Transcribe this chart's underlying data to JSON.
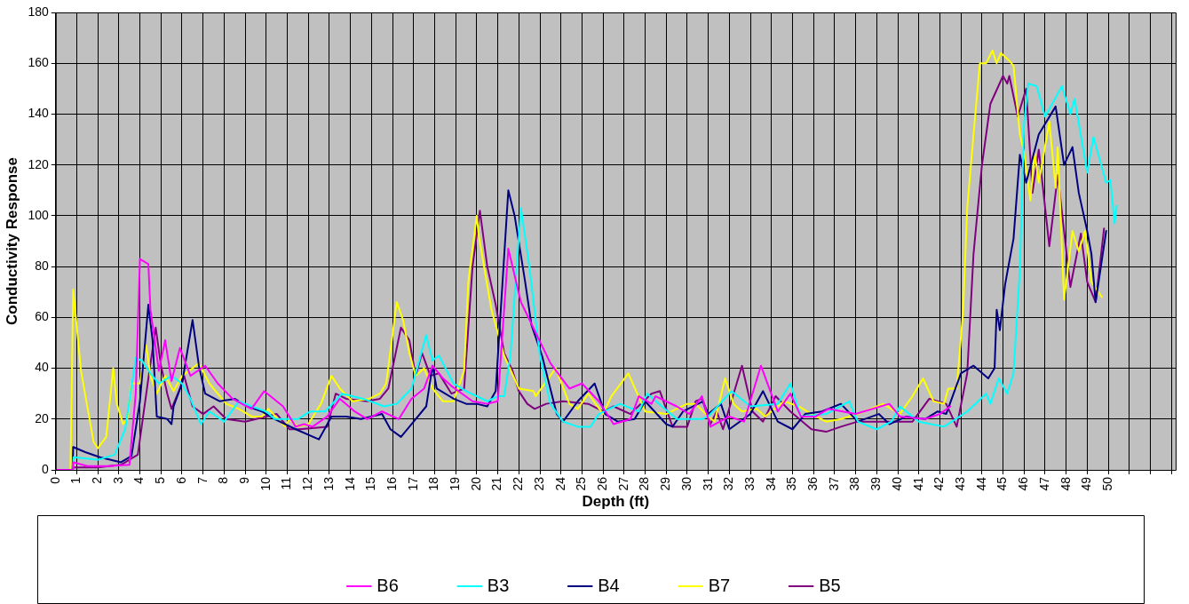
{
  "chart_data": {
    "type": "line",
    "xlabel": "Depth (ft)",
    "ylabel": "Conductivity Response",
    "xlim": [
      0,
      53.2
    ],
    "ylim": [
      0,
      180
    ],
    "xticks": [
      0,
      1,
      2,
      3,
      4,
      5,
      6,
      7,
      8,
      9,
      10,
      11,
      12,
      13,
      14,
      15,
      16,
      17,
      18,
      19,
      20,
      21,
      22,
      23,
      24,
      25,
      26,
      27,
      28,
      29,
      30,
      31,
      32,
      33,
      34,
      35,
      36,
      37,
      38,
      39,
      40,
      41,
      42,
      43,
      44,
      45,
      46,
      47,
      48,
      49,
      50,
      {
        "value": 51,
        "label": null
      },
      {
        "value": 52,
        "label": null
      },
      {
        "value": 53,
        "label": null
      }
    ],
    "yticks": [
      0,
      20,
      40,
      60,
      80,
      100,
      120,
      140,
      160,
      180
    ],
    "grid": true,
    "legend": "bottom",
    "marker": "none",
    "line_style": "solid",
    "series": [
      {
        "name": "B6",
        "color": "#ff00ff",
        "x": [
          0,
          0.8,
          0.85,
          1.5,
          2.5,
          3.5,
          3.8,
          4.0,
          4.4,
          4.5,
          4.9,
          5.2,
          5.5,
          5.9,
          6.4,
          7.1,
          7.7,
          8.4,
          9.3,
          9.9,
          10.8,
          11.4,
          11.8,
          12.2,
          12.9,
          13.5,
          14.2,
          14.8,
          15.5,
          16.3,
          16.9,
          17.5,
          17.9,
          18.4,
          18.8,
          19.8,
          20.5,
          21.0,
          21.5,
          22.1,
          22.8,
          23.5,
          24.4,
          25.0,
          25.8,
          26.5,
          27.3,
          27.7,
          28.3,
          28.5,
          29.5,
          30.1,
          30.7,
          31.1,
          32.0,
          32.7,
          33.5,
          34.3,
          34.9,
          35.4,
          36.1,
          36.7,
          38.0,
          39.6,
          40.1,
          41.3,
          42.0,
          42.5
        ],
        "values": [
          0,
          0,
          3,
          1.5,
          1.5,
          2,
          30,
          83,
          81,
          63,
          39,
          51,
          35,
          48,
          37,
          41,
          34,
          28,
          24,
          31,
          25,
          17,
          18,
          17,
          21,
          28,
          23,
          20,
          23,
          20,
          28,
          32,
          41,
          36,
          33,
          27,
          26,
          27,
          87,
          66,
          54,
          42,
          32,
          34,
          27,
          18,
          20,
          29,
          26,
          29,
          25,
          22,
          29,
          17,
          21,
          19,
          41,
          23,
          30,
          21,
          21,
          24,
          22,
          26,
          21,
          20,
          22,
          25
        ]
      },
      {
        "name": "B3",
        "color": "#00ffff",
        "x": [
          0,
          0.8,
          0.85,
          2.0,
          2.8,
          3.3,
          3.8,
          4.1,
          4.5,
          4.9,
          5.5,
          6.0,
          6.4,
          6.9,
          7.3,
          8.0,
          8.7,
          9.3,
          10.0,
          10.4,
          11.5,
          12.1,
          12.8,
          13.6,
          14.6,
          15.6,
          16.2,
          16.9,
          17.6,
          17.9,
          18.2,
          18.9,
          19.5,
          20.5,
          21.0,
          21.3,
          21.6,
          22.1,
          22.5,
          23.0,
          23.5,
          24.1,
          24.8,
          25.4,
          25.8,
          26.8,
          27.7,
          28.1,
          29.5,
          30.7,
          31.0,
          32.1,
          33.0,
          34.3,
          34.9,
          35.4,
          36.6,
          37.7,
          38.1,
          39.0,
          39.7,
          40.1,
          41.0,
          42.2,
          43.3,
          44.2,
          44.4,
          44.8,
          45.2,
          45.5,
          45.8,
          46.0,
          46.2,
          46.6,
          47.0,
          47.8,
          48.2,
          48.4,
          49.0,
          49.3,
          49.9,
          50.1,
          50.3,
          50.4
        ],
        "values": [
          0,
          0,
          5,
          4,
          6,
          16,
          44,
          43,
          38,
          34,
          37,
          34,
          28,
          18,
          23,
          19,
          27,
          25,
          23,
          20,
          20,
          23,
          23,
          30,
          28,
          25,
          26,
          32,
          53,
          43,
          45,
          34,
          31,
          27,
          29,
          29,
          45,
          103,
          80,
          45,
          26,
          19,
          17,
          17,
          22,
          26,
          23,
          30,
          20,
          20,
          21,
          31,
          25,
          26,
          34,
          21,
          22,
          27,
          19,
          16,
          19,
          25,
          19,
          17,
          23,
          30,
          26,
          36,
          30,
          38,
          79,
          136,
          152,
          151,
          139,
          151,
          140,
          146,
          117,
          131,
          113,
          114,
          97,
          104
        ]
      },
      {
        "name": "B4",
        "color": "#000080",
        "x": [
          0,
          0.8,
          0.83,
          1.4,
          2.1,
          3.1,
          3.6,
          4.0,
          4.4,
          4.6,
          4.8,
          5.3,
          5.5,
          5.6,
          6.0,
          6.5,
          6.8,
          7.1,
          7.8,
          8.5,
          9.1,
          9.8,
          10.4,
          11.4,
          12.5,
          13.1,
          13.8,
          14.5,
          15.5,
          15.9,
          16.4,
          16.9,
          17.6,
          17.9,
          18.1,
          18.9,
          19.5,
          20.0,
          20.5,
          20.9,
          21.5,
          21.8,
          22.3,
          22.6,
          23.1,
          23.8,
          24.1,
          24.8,
          25.6,
          26.1,
          26.7,
          27.5,
          28.0,
          29.0,
          29.3,
          29.8,
          30.75,
          31.0,
          31.6,
          32.0,
          33.0,
          33.6,
          34.3,
          35.0,
          35.6,
          36.4,
          37.3,
          38.1,
          39.1,
          39.6,
          40.4,
          41.3,
          41.9,
          42.3,
          43.0,
          43.6,
          44.3,
          44.6,
          44.7,
          44.85,
          45.1,
          45.5,
          45.8,
          46.1,
          46.7,
          47.5,
          47.9,
          48.3,
          48.6,
          49.0,
          49.2,
          49.4,
          49.9
        ],
        "values": [
          0,
          0,
          9,
          7,
          5,
          3,
          5.5,
          27,
          65,
          51,
          21,
          20,
          18,
          25,
          34,
          59,
          41,
          30,
          27,
          28,
          25,
          23,
          20,
          16,
          12,
          21,
          21,
          20,
          22,
          16,
          13,
          18,
          25,
          41,
          32,
          28,
          26,
          26,
          25,
          31,
          110,
          100,
          74,
          57,
          45,
          22,
          19,
          27,
          34,
          22,
          19,
          20,
          27,
          18,
          17,
          23,
          27,
          22,
          26,
          16,
          22,
          31,
          19,
          16,
          22,
          23,
          26,
          19,
          22,
          18,
          21,
          20,
          23,
          22,
          38,
          41,
          36,
          40,
          63,
          55,
          73,
          91,
          124,
          113,
          132,
          143,
          120,
          127,
          109,
          94,
          85,
          66,
          94
        ]
      },
      {
        "name": "B7",
        "color": "#ffff00",
        "x": [
          0,
          0.7,
          0.83,
          1.2,
          1.8,
          2.0,
          2.4,
          2.73,
          2.9,
          3.2,
          3.4,
          3.6,
          4.0,
          4.3,
          4.5,
          4.8,
          5.2,
          5.6,
          6.0,
          6.5,
          6.8,
          7.3,
          8.1,
          8.7,
          9.3,
          9.8,
          10.1,
          10.9,
          11.1,
          11.5,
          12.0,
          12.6,
          13.1,
          13.5,
          14.1,
          14.9,
          15.4,
          15.7,
          16.2,
          16.5,
          16.8,
          17.1,
          17.5,
          17.9,
          18.4,
          18.9,
          19.4,
          19.6,
          20.0,
          20.1,
          20.7,
          21.3,
          22.0,
          22.7,
          22.8,
          23.75,
          24.4,
          24.8,
          25.3,
          26.0,
          26.4,
          27.2,
          28.0,
          29.0,
          30.0,
          30.4,
          31.0,
          31.3,
          31.8,
          32.2,
          32.6,
          33.3,
          33.7,
          34.6,
          35.3,
          35.9,
          36.6,
          37.3,
          38.1,
          39.3,
          40.1,
          40.7,
          41.2,
          41.7,
          42.2,
          42.4,
          42.8,
          43.1,
          43.3,
          43.6,
          43.9,
          44.2,
          44.5,
          44.7,
          44.9,
          45.3,
          45.5,
          45.8,
          46.0,
          46.3,
          46.5,
          46.7,
          47.2,
          47.5,
          47.6,
          47.9,
          48.3,
          48.6,
          48.9,
          49.2,
          49.7
        ],
        "values": [
          0,
          0,
          71,
          39,
          11,
          8.5,
          13,
          40,
          26,
          18,
          20,
          34,
          34,
          49,
          37,
          30,
          37,
          31,
          37,
          40,
          42,
          34,
          26,
          24,
          21,
          21,
          24,
          17,
          20,
          17,
          18,
          26,
          37,
          32,
          27,
          28,
          30,
          34,
          66,
          59,
          46,
          37,
          40,
          32,
          27,
          27,
          39,
          74,
          100,
          92,
          63,
          45,
          32,
          31,
          29,
          40,
          26,
          24,
          30,
          22,
          29,
          38,
          23,
          22,
          26,
          26,
          21,
          19,
          36,
          26,
          23,
          24,
          21,
          27,
          25,
          22,
          19,
          20,
          22,
          26,
          22,
          29,
          36,
          27,
          26,
          32,
          32,
          62,
          103,
          132,
          160,
          160,
          165,
          160,
          164,
          161,
          159,
          132,
          125,
          106,
          125,
          113,
          137,
          111,
          127,
          67,
          94,
          86,
          94,
          74,
          68
        ]
      },
      {
        "name": "B5",
        "color": "#800080",
        "x": [
          0,
          0.8,
          0.85,
          2.0,
          3.1,
          3.9,
          4.4,
          4.75,
          5.0,
          5.3,
          5.5,
          5.9,
          6.1,
          6.5,
          7.0,
          7.5,
          8.1,
          9.0,
          10.0,
          10.5,
          11.1,
          11.6,
          12.9,
          13.3,
          13.8,
          14.8,
          15.4,
          15.8,
          16.4,
          16.8,
          17.1,
          17.4,
          17.8,
          18.2,
          18.8,
          19.4,
          19.8,
          20.15,
          20.5,
          20.9,
          21.3,
          21.7,
          22.0,
          22.4,
          22.75,
          23.3,
          24.1,
          25.3,
          26.0,
          26.5,
          27.3,
          28.3,
          28.7,
          29.3,
          30.0,
          30.4,
          30.7,
          31.1,
          31.4,
          31.7,
          32.6,
          33.1,
          33.6,
          34.2,
          34.9,
          35.9,
          36.6,
          37.3,
          38.1,
          39.4,
          40.7,
          41.5,
          42.3,
          42.8,
          43.3,
          43.6,
          44.0,
          44.4,
          45.0,
          45.2,
          45.3,
          45.7,
          46.1,
          46.4,
          46.7,
          47.2,
          47.6,
          48.2,
          48.7,
          49.0,
          49.4,
          49.8
        ],
        "values": [
          0,
          0,
          1,
          1,
          2,
          6,
          36,
          56,
          41,
          30,
          24,
          32,
          37,
          25,
          22,
          25,
          20,
          19,
          21,
          22,
          16,
          16,
          17,
          30,
          28,
          27,
          28,
          32,
          56,
          51,
          37,
          46,
          37,
          38,
          30,
          32,
          80,
          102,
          80,
          65,
          46,
          39,
          31,
          26,
          24,
          26,
          27,
          26,
          23,
          25,
          22,
          30,
          31,
          17,
          17,
          27,
          28,
          18,
          23,
          16,
          41,
          23,
          19,
          29,
          23,
          16,
          15,
          17,
          19,
          19,
          19,
          28,
          26,
          17,
          38,
          85,
          120,
          144,
          155,
          152,
          155,
          139,
          150,
          109,
          126,
          88,
          116,
          72,
          93,
          74,
          66,
          95
        ]
      }
    ]
  }
}
